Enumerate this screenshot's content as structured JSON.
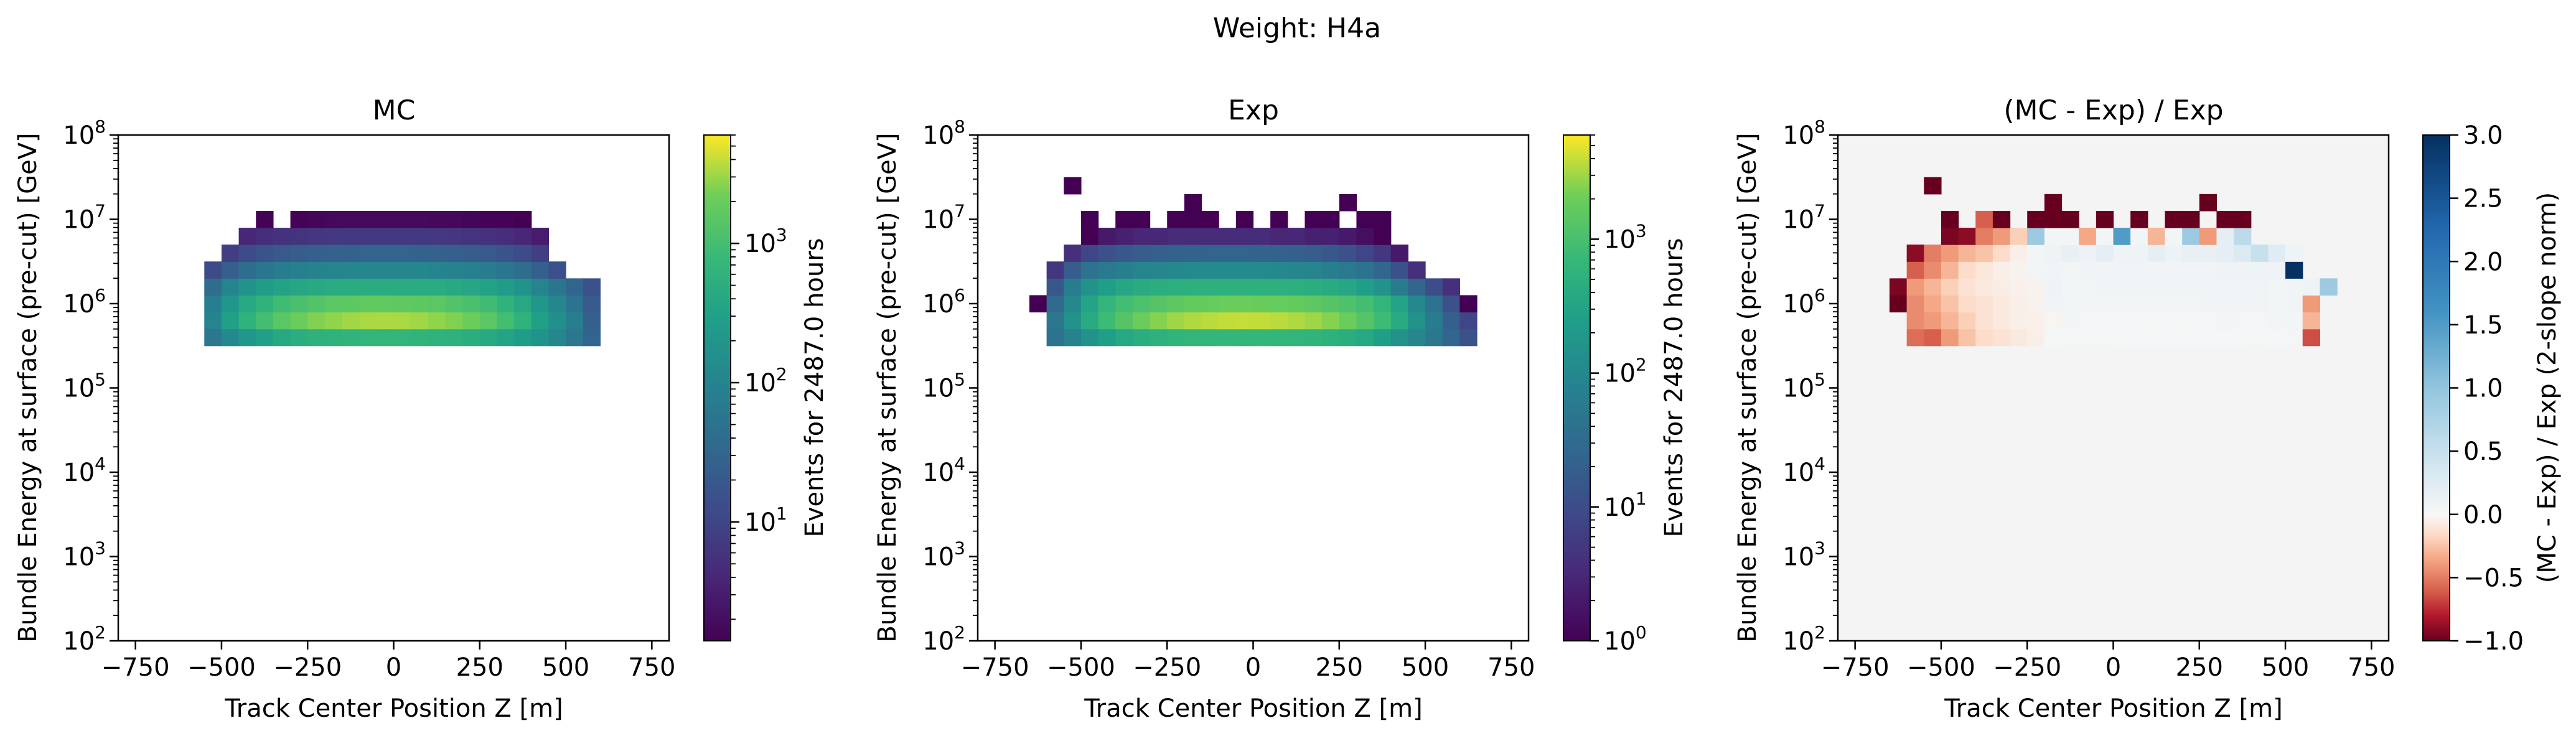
{
  "figure": {
    "suptitle": "Weight: H4a"
  },
  "chart_data": [
    {
      "type": "heatmap",
      "title": "MC",
      "xlabel": "Track Center Position Z [m]",
      "ylabel": "Bundle Energy at surface (pre-cut) [GeV]",
      "xlim": [
        -800,
        800
      ],
      "ylim": [
        100,
        100000000
      ],
      "yscale": "log",
      "x_ticks": [
        -750,
        -500,
        -250,
        0,
        250,
        500,
        750
      ],
      "x_tick_labels": [
        "−750",
        "−500",
        "−250",
        "0",
        "250",
        "500",
        "750"
      ],
      "y_ticks": [
        2,
        3,
        4,
        5,
        6,
        7,
        8
      ],
      "y_tick_labels": [
        "10",
        "10",
        "10",
        "10",
        "10",
        "10",
        "10"
      ],
      "y_tick_exponents": [
        "2",
        "3",
        "4",
        "5",
        "6",
        "7",
        "8"
      ],
      "colormap": "viridis",
      "colorbar": {
        "label": "Events for 2487.0 hours",
        "scale": "log",
        "range": [
          1.4,
          6000
        ],
        "ticks": [
          10,
          100,
          1000
        ],
        "tick_labels": [
          "10",
          "10",
          "10"
        ],
        "tick_exponents": [
          "1",
          "2",
          "3"
        ]
      },
      "x_bins": {
        "start": -600,
        "width": 50,
        "count": 24
      },
      "y_bins": {
        "start_log10": 5.5,
        "width_log10": 0.2,
        "count": 8
      },
      "rows": [
        {
          "log10E": 5.6,
          "values": [
            null,
            60,
            120,
            200,
            300,
            400,
            500,
            560,
            600,
            640,
            650,
            660,
            650,
            640,
            600,
            560,
            500,
            420,
            340,
            260,
            180,
            110,
            60,
            30
          ]
        },
        {
          "log10E": 5.8,
          "values": [
            null,
            100,
            300,
            600,
            1000,
            1500,
            2000,
            2500,
            2800,
            3100,
            3300,
            3400,
            3300,
            3100,
            2800,
            2500,
            2000,
            1500,
            1000,
            600,
            300,
            150,
            80,
            25
          ]
        },
        {
          "log10E": 6.0,
          "values": [
            null,
            80,
            200,
            400,
            600,
            900,
            1100,
            1300,
            1500,
            1600,
            1700,
            1700,
            1650,
            1600,
            1500,
            1300,
            1100,
            900,
            600,
            400,
            200,
            110,
            50,
            20
          ]
        },
        {
          "log10E": 6.2,
          "values": [
            null,
            40,
            100,
            180,
            250,
            320,
            380,
            420,
            450,
            470,
            480,
            480,
            470,
            460,
            450,
            420,
            380,
            320,
            250,
            180,
            100,
            55,
            30,
            15
          ]
        },
        {
          "log10E": 6.4,
          "values": [
            null,
            12,
            25,
            40,
            55,
            70,
            85,
            95,
            100,
            105,
            110,
            110,
            110,
            105,
            100,
            95,
            85,
            70,
            55,
            40,
            25,
            14,
            null,
            null
          ]
        },
        {
          "log10E": 6.6,
          "values": [
            null,
            null,
            8,
            12,
            16,
            20,
            23,
            25,
            27,
            28,
            29,
            29,
            29,
            28,
            27,
            25,
            23,
            20,
            16,
            12,
            8,
            null,
            null,
            null
          ]
        },
        {
          "log10E": 6.8,
          "values": [
            null,
            null,
            null,
            4,
            5,
            5.5,
            6,
            6.5,
            7,
            7,
            7,
            7,
            7,
            7,
            7,
            6.5,
            6,
            5.5,
            5,
            4,
            3,
            null,
            null,
            null
          ]
        },
        {
          "log10E": 7.0,
          "values": [
            null,
            null,
            null,
            null,
            1.5,
            null,
            1.5,
            1.6,
            1.7,
            1.8,
            1.8,
            1.8,
            1.8,
            1.8,
            1.7,
            1.7,
            1.6,
            1.5,
            1.5,
            1.4,
            null,
            null,
            null,
            null
          ]
        }
      ]
    },
    {
      "type": "heatmap",
      "title": "Exp",
      "xlabel": "Track Center Position Z [m]",
      "ylabel": "Bundle Energy at surface (pre-cut) [GeV]",
      "xlim": [
        -800,
        800
      ],
      "ylim": [
        100,
        100000000
      ],
      "yscale": "log",
      "x_ticks": [
        -750,
        -500,
        -250,
        0,
        250,
        500,
        750
      ],
      "x_tick_labels": [
        "−750",
        "−500",
        "−250",
        "0",
        "250",
        "500",
        "750"
      ],
      "y_ticks": [
        2,
        3,
        4,
        5,
        6,
        7,
        8
      ],
      "y_tick_labels": [
        "10",
        "10",
        "10",
        "10",
        "10",
        "10",
        "10"
      ],
      "y_tick_exponents": [
        "2",
        "3",
        "4",
        "5",
        "6",
        "7",
        "8"
      ],
      "colormap": "viridis",
      "colorbar": {
        "label": "Events for 2487.0 hours",
        "scale": "log",
        "range": [
          1,
          6000
        ],
        "ticks": [
          1,
          10,
          100,
          1000
        ],
        "tick_labels": [
          "10",
          "10",
          "10",
          "10"
        ],
        "tick_exponents": [
          "0",
          "1",
          "2",
          "3"
        ]
      },
      "x_bins": {
        "start": -650,
        "width": 50,
        "count": 26
      },
      "y_bins": {
        "start_log10": 5.5,
        "width_log10": 0.2,
        "count": 10
      },
      "rows": [
        {
          "log10E": 5.6,
          "values": [
            null,
            40,
            80,
            150,
            250,
            350,
            450,
            520,
            570,
            610,
            640,
            650,
            660,
            650,
            640,
            610,
            570,
            520,
            450,
            350,
            250,
            150,
            90,
            50,
            25,
            12
          ]
        },
        {
          "log10E": 5.8,
          "values": [
            null,
            50,
            150,
            400,
            800,
            1300,
            1900,
            2500,
            3000,
            3400,
            3700,
            3900,
            4000,
            3900,
            3700,
            3400,
            3000,
            2500,
            1900,
            1300,
            800,
            400,
            150,
            60,
            20,
            8
          ]
        },
        {
          "log10E": 6.0,
          "values": [
            1,
            30,
            100,
            300,
            600,
            900,
            1100,
            1300,
            1500,
            1700,
            1800,
            1900,
            1900,
            1850,
            1800,
            1700,
            1500,
            1300,
            1100,
            900,
            600,
            300,
            100,
            40,
            12,
            1
          ]
        },
        {
          "log10E": 6.2,
          "values": [
            null,
            15,
            60,
            150,
            250,
            330,
            400,
            440,
            470,
            490,
            500,
            500,
            500,
            490,
            480,
            470,
            440,
            400,
            330,
            250,
            150,
            60,
            25,
            10,
            4,
            null
          ]
        },
        {
          "log10E": 6.4,
          "values": [
            null,
            5,
            18,
            40,
            55,
            70,
            85,
            95,
            100,
            105,
            110,
            110,
            110,
            105,
            100,
            95,
            85,
            70,
            55,
            40,
            25,
            12,
            4,
            null,
            null,
            null
          ]
        },
        {
          "log10E": 6.6,
          "values": [
            null,
            null,
            4,
            8,
            12,
            15,
            18,
            20,
            22,
            23,
            24,
            24,
            24,
            23,
            22,
            20,
            18,
            15,
            12,
            8,
            5,
            2,
            null,
            null,
            null,
            null
          ]
        },
        {
          "log10E": 6.8,
          "values": [
            null,
            null,
            null,
            1,
            2,
            2.5,
            3,
            3,
            3.5,
            3.5,
            3.5,
            3.5,
            3.5,
            3.5,
            3,
            3,
            2.5,
            2.5,
            2,
            1.5,
            1,
            null,
            null,
            null,
            null,
            null
          ]
        },
        {
          "log10E": 7.0,
          "values": [
            null,
            null,
            null,
            1,
            null,
            1,
            1,
            null,
            1,
            1,
            1,
            null,
            1,
            null,
            1,
            null,
            1,
            1,
            null,
            1,
            1,
            null,
            null,
            null,
            null,
            null
          ]
        },
        {
          "log10E": 7.2,
          "values": [
            null,
            null,
            null,
            null,
            null,
            null,
            null,
            null,
            null,
            1,
            null,
            null,
            null,
            null,
            null,
            null,
            null,
            null,
            1,
            null,
            null,
            null,
            null,
            null,
            null,
            null
          ]
        },
        {
          "log10E": 7.4,
          "values": [
            null,
            null,
            1,
            null,
            null,
            null,
            null,
            null,
            null,
            null,
            null,
            null,
            null,
            null,
            null,
            null,
            null,
            null,
            null,
            null,
            null,
            null,
            null,
            null,
            null,
            null
          ]
        }
      ]
    },
    {
      "type": "heatmap",
      "title": "(MC - Exp) / Exp",
      "xlabel": "Track Center Position Z [m]",
      "ylabel": "Bundle Energy at surface (pre-cut) [GeV]",
      "xlim": [
        -800,
        800
      ],
      "ylim": [
        100,
        100000000
      ],
      "yscale": "log",
      "x_ticks": [
        -750,
        -500,
        -250,
        0,
        250,
        500,
        750
      ],
      "x_tick_labels": [
        "−750",
        "−500",
        "−250",
        "0",
        "250",
        "500",
        "750"
      ],
      "y_ticks": [
        2,
        3,
        4,
        5,
        6,
        7,
        8
      ],
      "y_tick_labels": [
        "10",
        "10",
        "10",
        "10",
        "10",
        "10",
        "10"
      ],
      "y_tick_exponents": [
        "2",
        "3",
        "4",
        "5",
        "6",
        "7",
        "8"
      ],
      "colormap": "RdBu",
      "background": "#f4f4f4",
      "colorbar": {
        "label": "(MC - Exp) / Exp (2-slope norm)",
        "scale": "two-slope",
        "range": [
          -1.0,
          3.0
        ],
        "center": 0.0,
        "ticks": [
          -1.0,
          -0.5,
          0.0,
          0.5,
          1.0,
          1.5,
          2.0,
          2.5,
          3.0
        ],
        "tick_labels": [
          "−1.0",
          "−0.5",
          "0.0",
          "0.5",
          "1.0",
          "1.5",
          "2.0",
          "2.5",
          "3.0"
        ]
      },
      "x_bins": {
        "start": -650,
        "width": 50,
        "count": 26
      },
      "y_bins": {
        "start_log10": 5.5,
        "width_log10": 0.2,
        "count": 10
      },
      "rows": [
        {
          "log10E": 5.6,
          "values": [
            null,
            -0.55,
            -0.6,
            -0.4,
            -0.25,
            -0.15,
            -0.12,
            -0.08,
            -0.05,
            0.02,
            0.03,
            0.03,
            0.03,
            0.02,
            0.02,
            0.02,
            0.02,
            0.02,
            0.02,
            0.02,
            0.02,
            0.03,
            0.02,
            0.04,
            -0.65,
            null
          ]
        },
        {
          "log10E": 5.8,
          "values": [
            null,
            -0.45,
            -0.4,
            -0.3,
            -0.2,
            -0.12,
            -0.08,
            -0.05,
            -0.04,
            -0.02,
            0.05,
            0.04,
            0.04,
            0.04,
            0.04,
            0.03,
            0.04,
            0.03,
            0.04,
            0.05,
            0.04,
            0.04,
            0.05,
            0.05,
            -0.3,
            null
          ]
        },
        {
          "log10E": 6.0,
          "values": [
            -1.0,
            -0.45,
            -0.35,
            -0.25,
            -0.15,
            -0.12,
            -0.08,
            -0.05,
            -0.03,
            0.06,
            0.05,
            0.05,
            0.05,
            0.05,
            0.05,
            0.05,
            0.05,
            0.05,
            0.06,
            0.06,
            0.06,
            0.06,
            0.05,
            0.06,
            -0.4,
            null
          ]
        },
        {
          "log10E": 6.2,
          "values": [
            -0.95,
            -0.4,
            -0.3,
            -0.2,
            -0.12,
            -0.08,
            -0.06,
            -0.04,
            -0.03,
            0.08,
            0.05,
            0.05,
            0.06,
            0.06,
            0.06,
            0.06,
            0.06,
            0.06,
            0.07,
            0.06,
            0.07,
            0.06,
            0.05,
            0.06,
            0.1,
            0.9
          ]
        },
        {
          "log10E": 6.4,
          "values": [
            null,
            -0.6,
            -0.45,
            -0.3,
            -0.15,
            -0.1,
            -0.05,
            -0.03,
            0.05,
            0.06,
            0.05,
            0.06,
            0.06,
            0.06,
            0.06,
            0.06,
            0.06,
            0.07,
            0.07,
            0.08,
            0.08,
            0.1,
            0.08,
            3.0,
            null,
            null
          ]
        },
        {
          "log10E": 6.6,
          "values": [
            null,
            -0.9,
            -0.5,
            -0.4,
            -0.3,
            -0.25,
            -0.15,
            -0.05,
            0.05,
            0.1,
            0.15,
            0.12,
            0.2,
            0.1,
            0.1,
            0.2,
            0.12,
            0.15,
            0.15,
            0.2,
            0.3,
            0.5,
            0.25,
            0.1,
            null,
            null
          ]
        },
        {
          "log10E": 6.8,
          "values": [
            null,
            null,
            null,
            -0.95,
            -0.9,
            -0.5,
            -0.4,
            -0.2,
            0.9,
            0.05,
            0.05,
            -0.35,
            0.05,
            1.5,
            0.05,
            -0.3,
            0.05,
            0.9,
            -0.4,
            0.2,
            0.6,
            null,
            null,
            null,
            null,
            null
          ]
        },
        {
          "log10E": 7.0,
          "values": [
            null,
            null,
            null,
            -1.0,
            null,
            -0.6,
            -1.0,
            null,
            -1.0,
            -1.0,
            -1.0,
            null,
            -1.0,
            null,
            -1.0,
            null,
            -1.0,
            -1.0,
            null,
            -1.0,
            -1.0,
            null,
            null,
            null,
            null,
            null
          ]
        },
        {
          "log10E": 7.2,
          "values": [
            null,
            null,
            null,
            null,
            null,
            null,
            null,
            null,
            null,
            -1.0,
            null,
            null,
            null,
            null,
            null,
            null,
            null,
            null,
            -1.0,
            null,
            null,
            null,
            null,
            null,
            null,
            null
          ]
        },
        {
          "log10E": 7.4,
          "values": [
            null,
            null,
            -1.0,
            null,
            null,
            null,
            null,
            null,
            null,
            null,
            null,
            null,
            null,
            null,
            null,
            null,
            null,
            null,
            null,
            null,
            null,
            null,
            null,
            null,
            null,
            null
          ]
        }
      ]
    }
  ]
}
